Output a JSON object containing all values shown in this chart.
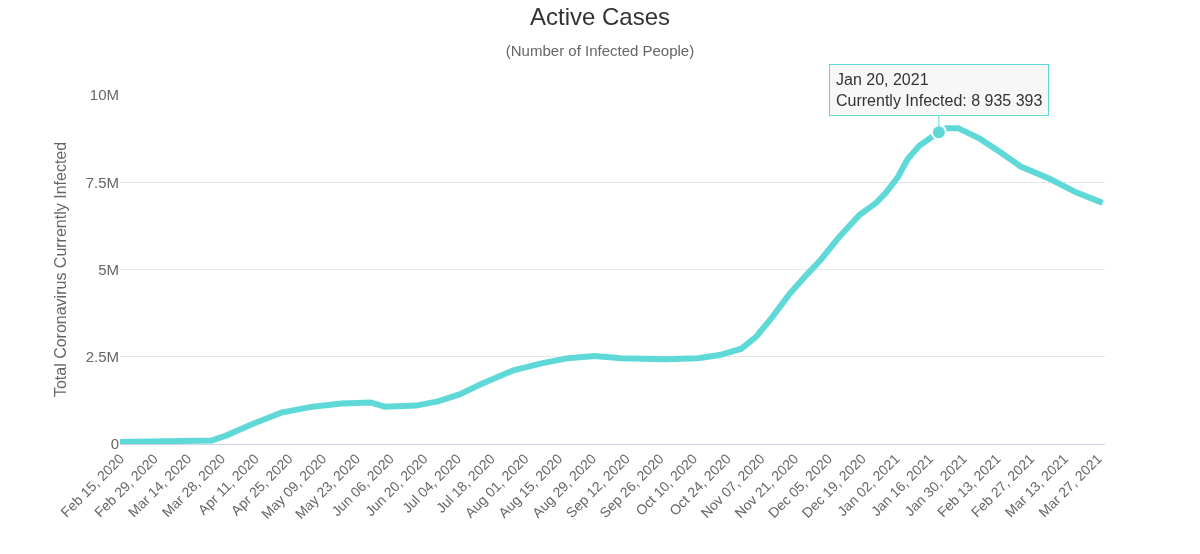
{
  "chart_data": {
    "type": "line",
    "title": "Active Cases",
    "subtitle": "(Number of Infected People)",
    "ylabel": "Total Coronavirus Currently Infected",
    "x": [
      "2020-02-15",
      "2020-03-24",
      "2020-03-30",
      "2020-04-11",
      "2020-04-22",
      "2020-05-05",
      "2020-05-17",
      "2020-05-29",
      "2020-06-04",
      "2020-06-17",
      "2020-06-26",
      "2020-07-05",
      "2020-07-14",
      "2020-07-27",
      "2020-08-08",
      "2020-08-19",
      "2020-08-30",
      "2020-09-10",
      "2020-09-28",
      "2020-10-12",
      "2020-10-21",
      "2020-10-30",
      "2020-11-05",
      "2020-11-12",
      "2020-11-19",
      "2020-11-26",
      "2020-12-02",
      "2020-12-09",
      "2020-12-18",
      "2020-12-25",
      "2020-12-29",
      "2021-01-03",
      "2021-01-07",
      "2021-01-12",
      "2021-01-20",
      "2021-01-23",
      "2021-01-28",
      "2021-02-06",
      "2021-02-15",
      "2021-02-23",
      "2021-03-07",
      "2021-03-18",
      "2021-03-29"
    ],
    "series": [
      {
        "color": "#5fd8d8",
        "values": [
          60000,
          100000,
          240000,
          600000,
          900000,
          1070000,
          1160000,
          1190000,
          1070000,
          1100000,
          1220000,
          1420000,
          1720000,
          2100000,
          2310000,
          2460000,
          2520000,
          2460000,
          2430000,
          2460000,
          2550000,
          2730000,
          3060000,
          3650000,
          4300000,
          4840000,
          5280000,
          5880000,
          6560000,
          6910000,
          7200000,
          7650000,
          8160000,
          8550000,
          8935393,
          9050000,
          9050000,
          8750000,
          8340000,
          7950000,
          7600000,
          7210000,
          6910000
        ]
      }
    ],
    "xlim": [
      "2020-02-15",
      "2021-03-30"
    ],
    "xticks": [
      {
        "value": "2020-02-15",
        "label": "Feb 15, 2020"
      },
      {
        "value": "2020-02-29",
        "label": "Feb 29, 2020"
      },
      {
        "value": "2020-03-14",
        "label": "Mar 14, 2020"
      },
      {
        "value": "2020-03-28",
        "label": "Mar 28, 2020"
      },
      {
        "value": "2020-04-11",
        "label": "Apr 11, 2020"
      },
      {
        "value": "2020-04-25",
        "label": "Apr 25, 2020"
      },
      {
        "value": "2020-05-09",
        "label": "May 09, 2020"
      },
      {
        "value": "2020-05-23",
        "label": "May 23, 2020"
      },
      {
        "value": "2020-06-06",
        "label": "Jun 06, 2020"
      },
      {
        "value": "2020-06-20",
        "label": "Jun 20, 2020"
      },
      {
        "value": "2020-07-04",
        "label": "Jul 04, 2020"
      },
      {
        "value": "2020-07-18",
        "label": "Jul 18, 2020"
      },
      {
        "value": "2020-08-01",
        "label": "Aug 01, 2020"
      },
      {
        "value": "2020-08-15",
        "label": "Aug 15, 2020"
      },
      {
        "value": "2020-08-29",
        "label": "Aug 29, 2020"
      },
      {
        "value": "2020-09-12",
        "label": "Sep 12, 2020"
      },
      {
        "value": "2020-09-26",
        "label": "Sep 26, 2020"
      },
      {
        "value": "2020-10-10",
        "label": "Oct 10, 2020"
      },
      {
        "value": "2020-10-24",
        "label": "Oct 24, 2020"
      },
      {
        "value": "2020-11-07",
        "label": "Nov 07, 2020"
      },
      {
        "value": "2020-11-21",
        "label": "Nov 21, 2020"
      },
      {
        "value": "2020-12-05",
        "label": "Dec 05, 2020"
      },
      {
        "value": "2020-12-19",
        "label": "Dec 19, 2020"
      },
      {
        "value": "2021-01-02",
        "label": "Jan 02, 2021"
      },
      {
        "value": "2021-01-16",
        "label": "Jan 16, 2021"
      },
      {
        "value": "2021-01-30",
        "label": "Jan 30, 2021"
      },
      {
        "value": "2021-02-13",
        "label": "Feb 13, 2021"
      },
      {
        "value": "2021-02-27",
        "label": "Feb 27, 2021"
      },
      {
        "value": "2021-03-13",
        "label": "Mar 13, 2021"
      },
      {
        "value": "2021-03-27",
        "label": "Mar 27, 2021"
      }
    ],
    "ylim": [
      0,
      10000000
    ],
    "yticks": [
      0,
      {
        "value": 2500000,
        "label": "2.5M"
      },
      {
        "value": 5000000,
        "label": "5M"
      },
      {
        "value": 7500000,
        "label": "7.5M"
      },
      {
        "value": 10000000,
        "label": "10M"
      }
    ],
    "grid": "y",
    "marker": "none",
    "line_style": "solid",
    "annotations": [
      {
        "text": "Jan 20, 2021\nCurrently Infected: 8 935 393",
        "x": "2021-01-20",
        "y": 8935393
      }
    ]
  }
}
